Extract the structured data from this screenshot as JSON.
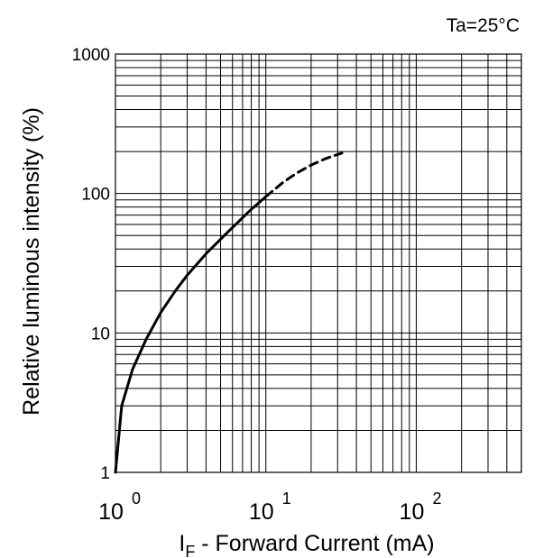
{
  "chart_data": {
    "type": "line",
    "condition": "Ta=25°C",
    "xlabel": {
      "main": "I",
      "sub": "F",
      "rest": " - Forward Current (mA)"
    },
    "ylabel": "Relative luminous intensity  (%)",
    "x_scale": "log",
    "y_scale": "log",
    "xlim": [
      1,
      500
    ],
    "ylim": [
      1,
      1000
    ],
    "grid": true,
    "x_ticks": [
      {
        "value": 1,
        "base": "10",
        "exp": "0"
      },
      {
        "value": 10,
        "base": "10",
        "exp": "1"
      },
      {
        "value": 100,
        "base": "10",
        "exp": "2"
      }
    ],
    "y_ticks": [
      {
        "value": 1,
        "label": "1"
      },
      {
        "value": 10,
        "label": "10"
      },
      {
        "value": 100,
        "label": "100"
      },
      {
        "value": 1000,
        "label": "1000"
      }
    ],
    "series": [
      {
        "style": "solid",
        "x": [
          1,
          1.1,
          1.3,
          1.6,
          2,
          2.5,
          3,
          4,
          5,
          6,
          7,
          8,
          10
        ],
        "y": [
          1,
          3,
          5.5,
          9,
          14,
          20,
          26,
          37,
          47,
          57,
          67,
          77,
          95
        ]
      },
      {
        "style": "dashed",
        "x": [
          10,
          13,
          16,
          20,
          25,
          32
        ],
        "y": [
          95,
          120,
          140,
          160,
          178,
          195
        ]
      }
    ]
  }
}
